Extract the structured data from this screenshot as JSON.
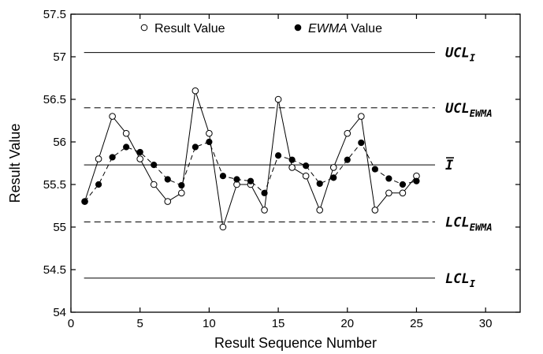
{
  "chart_data": {
    "type": "scatter",
    "xlabel": "Result Sequence Number",
    "ylabel": "Result Value",
    "xlim": [
      0,
      32.5
    ],
    "ylim": [
      54,
      57.5
    ],
    "xticks": [
      0,
      5,
      10,
      15,
      20,
      25,
      30
    ],
    "yticks": [
      54,
      54.5,
      55,
      55.5,
      56,
      56.5,
      57,
      57.5
    ],
    "legend": {
      "position": "top",
      "entries": [
        {
          "name": "Result Value",
          "marker": "open-circle"
        },
        {
          "name": "EWMA Value",
          "marker": "filled-circle"
        }
      ]
    },
    "series": [
      {
        "name": "Result Value",
        "marker": "open-circle",
        "line": "solid",
        "x": [
          1,
          2,
          3,
          4,
          5,
          6,
          7,
          8,
          9,
          10,
          11,
          12,
          13,
          14,
          15,
          16,
          17,
          18,
          19,
          20,
          21,
          22,
          23,
          24,
          25
        ],
        "y": [
          55.3,
          55.8,
          56.3,
          56.1,
          55.8,
          55.5,
          55.3,
          55.4,
          56.6,
          56.1,
          55.0,
          55.5,
          55.5,
          55.2,
          56.5,
          55.7,
          55.6,
          55.2,
          55.7,
          56.1,
          56.3,
          55.2,
          55.4,
          55.4,
          55.6
        ]
      },
      {
        "name": "EWMA Value",
        "marker": "filled-circle",
        "line": "dashed",
        "x": [
          1,
          2,
          3,
          4,
          5,
          6,
          7,
          8,
          9,
          10,
          11,
          12,
          13,
          14,
          15,
          16,
          17,
          18,
          19,
          20,
          21,
          22,
          23,
          24,
          25
        ],
        "y": [
          55.3,
          55.5,
          55.82,
          55.94,
          55.88,
          55.73,
          55.56,
          55.49,
          55.94,
          56.0,
          55.6,
          55.56,
          55.54,
          55.4,
          55.84,
          55.79,
          55.72,
          55.51,
          55.58,
          55.79,
          55.99,
          55.68,
          55.57,
          55.5,
          55.54
        ]
      }
    ],
    "reference_lines": [
      {
        "value": 57.05,
        "style": "solid",
        "label": "UCL",
        "subscript": "I"
      },
      {
        "value": 56.4,
        "style": "dashed",
        "label": "UCL",
        "subscript": "EWMA"
      },
      {
        "value": 55.73,
        "style": "solid",
        "label": "I",
        "overline": true,
        "subscript": ""
      },
      {
        "value": 55.06,
        "style": "dashed",
        "label": "LCL",
        "subscript": "EWMA"
      },
      {
        "value": 54.4,
        "style": "solid",
        "label": "LCL",
        "subscript": "I"
      }
    ],
    "grid": false
  }
}
